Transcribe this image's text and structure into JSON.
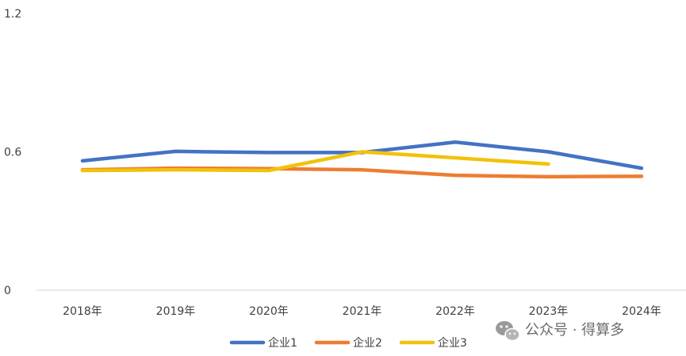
{
  "chart_data": {
    "type": "line",
    "title": "",
    "xlabel": "",
    "ylabel": "",
    "categories": [
      "2018年",
      "2019年",
      "2020年",
      "2021年",
      "2022年",
      "2023年",
      "2024年"
    ],
    "ylim": [
      0,
      1.2
    ],
    "yticks": [
      0,
      0.6,
      1.2
    ],
    "ytick_labels": [
      "0",
      "0.6",
      "1.2"
    ],
    "grid": "none",
    "legend_position": "bottom",
    "series": [
      {
        "name": "企业1",
        "color": "#4472C4",
        "values": [
          0.561,
          0.602,
          0.597,
          0.597,
          0.642,
          0.6,
          0.529
        ]
      },
      {
        "name": "企业2",
        "color": "#ED7D31",
        "values": [
          0.522,
          0.529,
          0.527,
          0.522,
          0.498,
          0.492,
          0.494
        ]
      },
      {
        "name": "企业3",
        "color": "#F2C20A",
        "values": [
          0.519,
          0.522,
          0.519,
          0.6,
          0.574,
          0.547,
          null
        ]
      }
    ]
  },
  "watermark": {
    "text": "公众号 · 得算多",
    "icon": "wechat-icon"
  }
}
